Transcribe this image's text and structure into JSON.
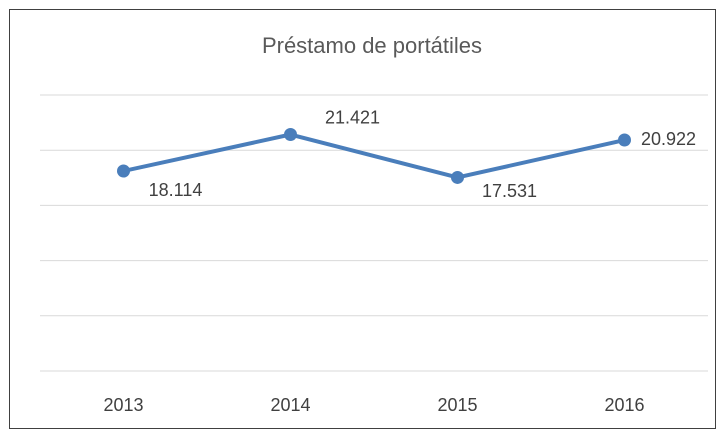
{
  "chart_data": {
    "type": "line",
    "title": "Préstamo de portátiles",
    "categories": [
      "2013",
      "2014",
      "2015",
      "2016"
    ],
    "series": [
      {
        "name": "Préstamo de portátiles",
        "color": "#4a7ebb",
        "values": [
          18114,
          21421,
          17531,
          20922
        ],
        "value_labels": [
          "18.114",
          "21.421",
          "17.531",
          "20.922"
        ]
      }
    ],
    "ylim": [
      0,
      25000
    ],
    "yticks": [
      0,
      5000,
      10000,
      15000,
      20000,
      25000
    ],
    "grid": true
  }
}
